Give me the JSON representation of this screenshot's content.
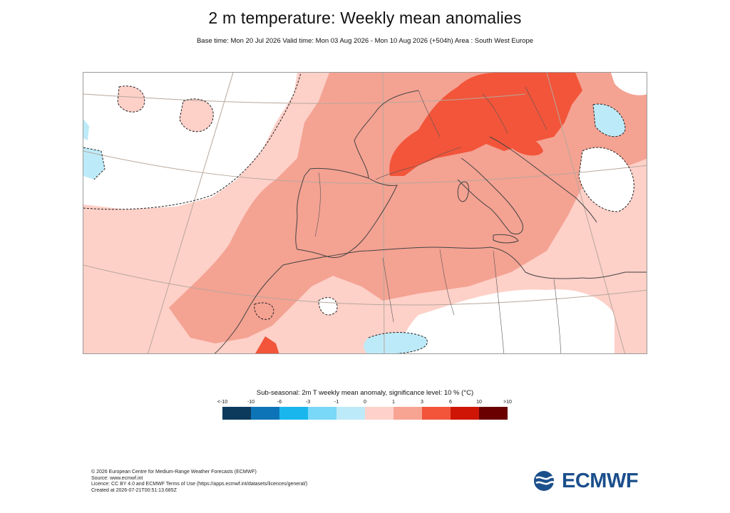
{
  "header": {
    "title": "2 m temperature: Weekly mean anomalies",
    "subtitle": "Base time: Mon 20 Jul 2026 Valid time: Mon 03 Aug 2026 - Mon 10 Aug 2026 (+504h) Area : South West Europe"
  },
  "map": {
    "region": "South West Europe",
    "palette": {
      "ocean_base": "#fdd0c8",
      "land_base": "#f6a08f",
      "warm": "#f4a292",
      "hot": "#f2553a",
      "neutral": "#ffffff",
      "cool": "#bdeaf8",
      "border_line": "#444444",
      "graticule": "#b8a89c"
    }
  },
  "legend": {
    "title": "Sub-seasonal: 2m T weekly mean anomaly, significance level: 10 % (°C)",
    "ticks": [
      "<-10",
      "-10",
      "-6",
      "-3",
      "-1",
      "0",
      "1",
      "3",
      "6",
      "10",
      ">10"
    ],
    "colors": [
      "#0b3a5c",
      "#0e74b8",
      "#19b6ee",
      "#79d7f7",
      "#bdeaf8",
      "#ffd1cb",
      "#f7a493",
      "#f2553a",
      "#cf1606",
      "#6a0000"
    ]
  },
  "footer": {
    "copyright": "© 2026 European Centre for Medium-Range Weather Forecasts (ECMWF)",
    "source": "Source: www.ecmwf.int",
    "licence": "Licence: CC BY 4.0 and ECMWF Terms of Use (https://apps.ecmwf.int/datasets/licences/general/)",
    "created": "Created at 2026-07-21T00:51:13.685Z"
  },
  "logo": {
    "text": "ECMWF",
    "color": "#1b4f8c"
  }
}
